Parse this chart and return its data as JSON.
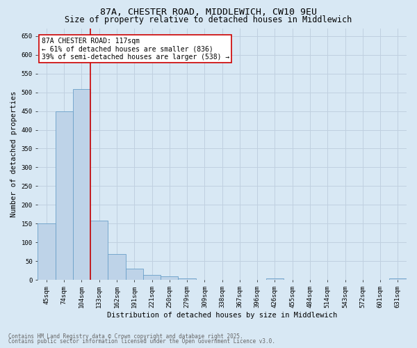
{
  "title_line1": "87A, CHESTER ROAD, MIDDLEWICH, CW10 9EU",
  "title_line2": "Size of property relative to detached houses in Middlewich",
  "xlabel": "Distribution of detached houses by size in Middlewich",
  "ylabel": "Number of detached properties",
  "categories": [
    "45sqm",
    "74sqm",
    "104sqm",
    "133sqm",
    "162sqm",
    "191sqm",
    "221sqm",
    "250sqm",
    "279sqm",
    "309sqm",
    "338sqm",
    "367sqm",
    "396sqm",
    "426sqm",
    "455sqm",
    "484sqm",
    "514sqm",
    "543sqm",
    "572sqm",
    "601sqm",
    "631sqm"
  ],
  "values": [
    150,
    450,
    508,
    158,
    68,
    30,
    13,
    9,
    4,
    0,
    0,
    0,
    0,
    3,
    0,
    0,
    0,
    0,
    0,
    0,
    3
  ],
  "bar_color": "#bed3e8",
  "bar_edge_color": "#6a9fc8",
  "vline_x": 2.5,
  "vline_color": "#cc0000",
  "annotation_text": "87A CHESTER ROAD: 117sqm\n← 61% of detached houses are smaller (836)\n39% of semi-detached houses are larger (538) →",
  "annotation_box_color": "#ffffff",
  "annotation_box_edge_color": "#cc0000",
  "ylim": [
    0,
    670
  ],
  "yticks": [
    0,
    50,
    100,
    150,
    200,
    250,
    300,
    350,
    400,
    450,
    500,
    550,
    600,
    650
  ],
  "grid_color": "#c0d0e0",
  "background_color": "#d8e8f4",
  "footer_line1": "Contains HM Land Registry data © Crown copyright and database right 2025.",
  "footer_line2": "Contains public sector information licensed under the Open Government Licence v3.0.",
  "footer_color": "#666666",
  "title_fontsize": 9.5,
  "subtitle_fontsize": 8.5,
  "tick_fontsize": 6.5,
  "ylabel_fontsize": 7.5,
  "xlabel_fontsize": 7.5,
  "annotation_fontsize": 7,
  "footer_fontsize": 5.5
}
